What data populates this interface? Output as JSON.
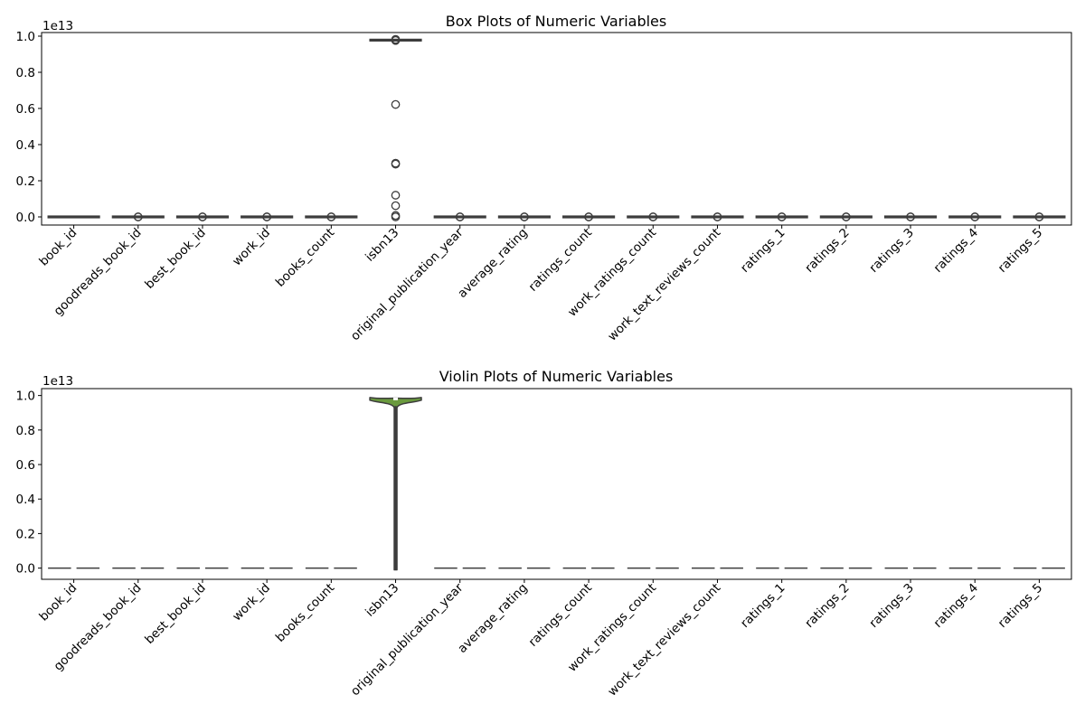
{
  "chart_data": [
    {
      "type": "box",
      "title": "Box Plots of Numeric Variables",
      "xlabel": "",
      "ylabel": "",
      "y_offset_label": "1e13",
      "ylim": [
        -0.045,
        1.02
      ],
      "yticks": [
        "0.0",
        "0.2",
        "0.4",
        "0.6",
        "0.8",
        "1.0"
      ],
      "ytick_values": [
        0,
        0.2,
        0.4,
        0.6,
        0.8,
        1.0
      ],
      "grid": false,
      "categories": [
        "book_id",
        "goodreads_book_id",
        "best_book_id",
        "work_id",
        "books_count",
        "isbn13",
        "original_publication_year",
        "average_rating",
        "ratings_count",
        "work_ratings_count",
        "work_text_reviews_count",
        "ratings_1",
        "ratings_2",
        "ratings_3",
        "ratings_4",
        "ratings_5"
      ],
      "colors": [
        "#3b75af",
        "#ef8636",
        "#519e3e",
        "#c53a32",
        "#8d69b8",
        "#84584e",
        "#d57dbf",
        "#7f7f7f",
        "#bcbc45",
        "#58bbcc",
        "#3b75af",
        "#ef8636",
        "#519e3e",
        "#c53a32",
        "#8d69b8",
        "#84584e"
      ],
      "series": [
        {
          "q1": 0,
          "median": 0,
          "q3": 0,
          "whisker_low": 0,
          "whisker_high": 0,
          "outliers": []
        },
        {
          "q1": 0,
          "median": 0,
          "q3": 0,
          "whisker_low": 0,
          "whisker_high": 0,
          "outliers": [
            0.0,
            0.0
          ]
        },
        {
          "q1": 0,
          "median": 0,
          "q3": 0,
          "whisker_low": 0,
          "whisker_high": 0,
          "outliers": [
            0.0,
            0.0
          ]
        },
        {
          "q1": 0,
          "median": 0,
          "q3": 0,
          "whisker_low": 0,
          "whisker_high": 0,
          "outliers": [
            0.0,
            0.0
          ]
        },
        {
          "q1": 0,
          "median": 0,
          "q3": 0,
          "whisker_low": 0,
          "whisker_high": 0,
          "outliers": [
            0.0,
            0.0
          ]
        },
        {
          "q1": 0.978,
          "median": 0.978,
          "q3": 0.978,
          "whisker_low": 0.978,
          "whisker_high": 0.978,
          "outliers": [
            0.982,
            0.98,
            0.976,
            0.622,
            0.297,
            0.292,
            0.12,
            0.062,
            0.008,
            0.0
          ]
        },
        {
          "q1": 0,
          "median": 0,
          "q3": 0,
          "whisker_low": 0,
          "whisker_high": 0,
          "outliers": [
            0.0,
            0.0
          ]
        },
        {
          "q1": 0,
          "median": 0,
          "q3": 0,
          "whisker_low": 0,
          "whisker_high": 0,
          "outliers": [
            0.0,
            0.0
          ]
        },
        {
          "q1": 0,
          "median": 0,
          "q3": 0,
          "whisker_low": 0,
          "whisker_high": 0,
          "outliers": [
            0.0,
            0.0
          ]
        },
        {
          "q1": 0,
          "median": 0,
          "q3": 0,
          "whisker_low": 0,
          "whisker_high": 0,
          "outliers": [
            0.0,
            0.0
          ]
        },
        {
          "q1": 0,
          "median": 0,
          "q3": 0,
          "whisker_low": 0,
          "whisker_high": 0,
          "outliers": [
            0.0,
            0.0
          ]
        },
        {
          "q1": 0,
          "median": 0,
          "q3": 0,
          "whisker_low": 0,
          "whisker_high": 0,
          "outliers": [
            0.0,
            0.0
          ]
        },
        {
          "q1": 0,
          "median": 0,
          "q3": 0,
          "whisker_low": 0,
          "whisker_high": 0,
          "outliers": [
            0.0,
            0.0
          ]
        },
        {
          "q1": 0,
          "median": 0,
          "q3": 0,
          "whisker_low": 0,
          "whisker_high": 0,
          "outliers": [
            0.0,
            0.0
          ]
        },
        {
          "q1": 0,
          "median": 0,
          "q3": 0,
          "whisker_low": 0,
          "whisker_high": 0,
          "outliers": [
            0.0,
            0.0
          ]
        },
        {
          "q1": 0,
          "median": 0,
          "q3": 0,
          "whisker_low": 0,
          "whisker_high": 0,
          "outliers": [
            0.0,
            0.0
          ]
        }
      ]
    },
    {
      "type": "violin",
      "title": "Violin Plots of Numeric Variables",
      "xlabel": "",
      "ylabel": "",
      "y_offset_label": "1e13",
      "ylim": [
        -0.065,
        1.04
      ],
      "yticks": [
        "0.0",
        "0.2",
        "0.4",
        "0.6",
        "0.8",
        "1.0"
      ],
      "ytick_values": [
        0,
        0.2,
        0.4,
        0.6,
        0.8,
        1.0
      ],
      "grid": false,
      "categories": [
        "book_id",
        "goodreads_book_id",
        "best_book_id",
        "work_id",
        "books_count",
        "isbn13",
        "original_publication_year",
        "average_rating",
        "ratings_count",
        "work_ratings_count",
        "work_text_reviews_count",
        "ratings_1",
        "ratings_2",
        "ratings_3",
        "ratings_4",
        "ratings_5"
      ],
      "colors": [
        "#3b75af",
        "#ef8636",
        "#519e3e",
        "#c53a32",
        "#8d69b8",
        "#84584e",
        "#d57dbf",
        "#7f7f7f",
        "#bcbc45",
        "#58bbcc",
        "#3b75af",
        "#ef8636",
        "#519e3e",
        "#c53a32",
        "#8d69b8",
        "#84584e"
      ],
      "violin_color": "#6a9a3e",
      "series": [
        {
          "min": 0,
          "max": 0,
          "median": 0
        },
        {
          "min": 0,
          "max": 0,
          "median": 0
        },
        {
          "min": 0,
          "max": 0,
          "median": 0
        },
        {
          "min": 0,
          "max": 0,
          "median": 0
        },
        {
          "min": 0,
          "max": 0,
          "median": 0
        },
        {
          "min": -0.01,
          "max": 0.985,
          "median": 0.978,
          "bulk_low": 0.96,
          "bulk_high": 0.985
        },
        {
          "min": 0,
          "max": 0,
          "median": 0
        },
        {
          "min": 0,
          "max": 0,
          "median": 0
        },
        {
          "min": 0,
          "max": 0,
          "median": 0
        },
        {
          "min": 0,
          "max": 0,
          "median": 0
        },
        {
          "min": 0,
          "max": 0,
          "median": 0
        },
        {
          "min": 0,
          "max": 0,
          "median": 0
        },
        {
          "min": 0,
          "max": 0,
          "median": 0
        },
        {
          "min": 0,
          "max": 0,
          "median": 0
        },
        {
          "min": 0,
          "max": 0,
          "median": 0
        },
        {
          "min": 0,
          "max": 0,
          "median": 0
        }
      ]
    }
  ]
}
